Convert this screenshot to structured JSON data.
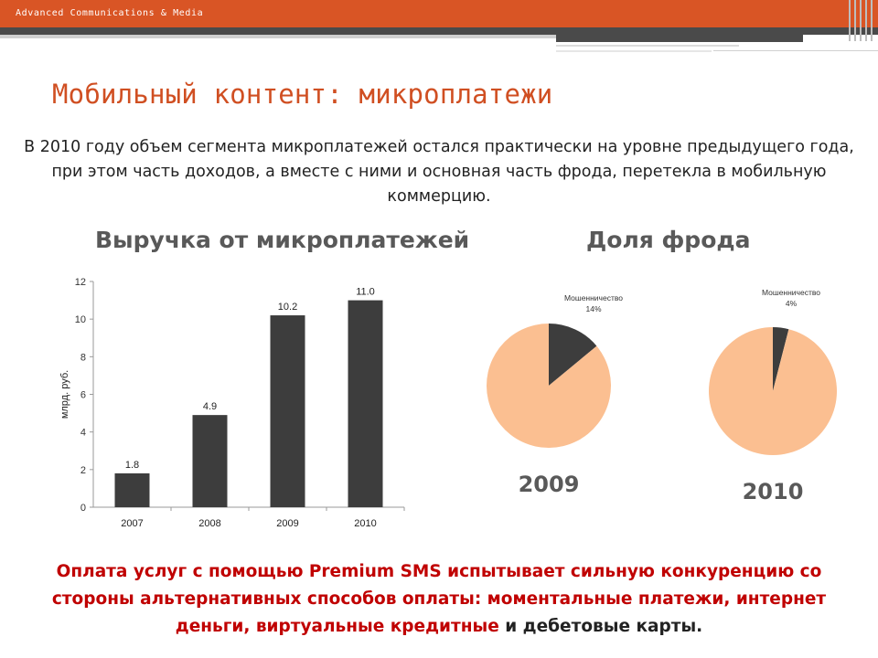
{
  "header": {
    "brand": "Advanced Communications & Media",
    "accent_color": "#d95525",
    "band_color": "#4a4a4a"
  },
  "slide": {
    "title": "Мобильный контент: микроплатежи",
    "intro": "В 2010 году объем сегмента микроплатежей остался практически на уровне предыдущего года, при этом часть доходов, а вместе с ними и основная часть фрода, перетекла в мобильную коммерцию.",
    "bottom_note": {
      "line1": "Оплата услуг с помощью Premium SMS испытывает сильную конкуренцию со",
      "line2": "стороны альтернативных способов оплаты: моментальные платежи, интернет",
      "line3_red": "деньги, виртуальные кредитные",
      "line3_dark": " и дебетовые карты."
    }
  },
  "chart_data": [
    {
      "type": "bar",
      "title": "Выручка от микроплатежей",
      "ylabel": "млрд. руб.",
      "categories": [
        "2007",
        "2008",
        "2009",
        "2010"
      ],
      "values": [
        1.8,
        4.9,
        10.2,
        11.0
      ],
      "data_labels": [
        "1.8",
        "4.9",
        "10.2",
        "11.0"
      ],
      "ylim": [
        0,
        12
      ],
      "yticks": [
        0,
        2,
        4,
        6,
        8,
        10,
        12
      ],
      "grid": false,
      "bar_color": "#3d3d3d"
    },
    {
      "type": "pie",
      "title": "Доля фрода",
      "year_label": "2009",
      "slices": [
        {
          "label": "Мошенничество",
          "value": 14,
          "value_label": "14%",
          "color": "#3d3d3d"
        },
        {
          "label": "",
          "value": 86,
          "color": "#fbbf91"
        }
      ]
    },
    {
      "type": "pie",
      "year_label": "2010",
      "slices": [
        {
          "label": "Мошенничество",
          "value": 4,
          "value_label": "4%",
          "color": "#3d3d3d"
        },
        {
          "label": "",
          "value": 96,
          "color": "#fbbf91"
        }
      ]
    }
  ]
}
